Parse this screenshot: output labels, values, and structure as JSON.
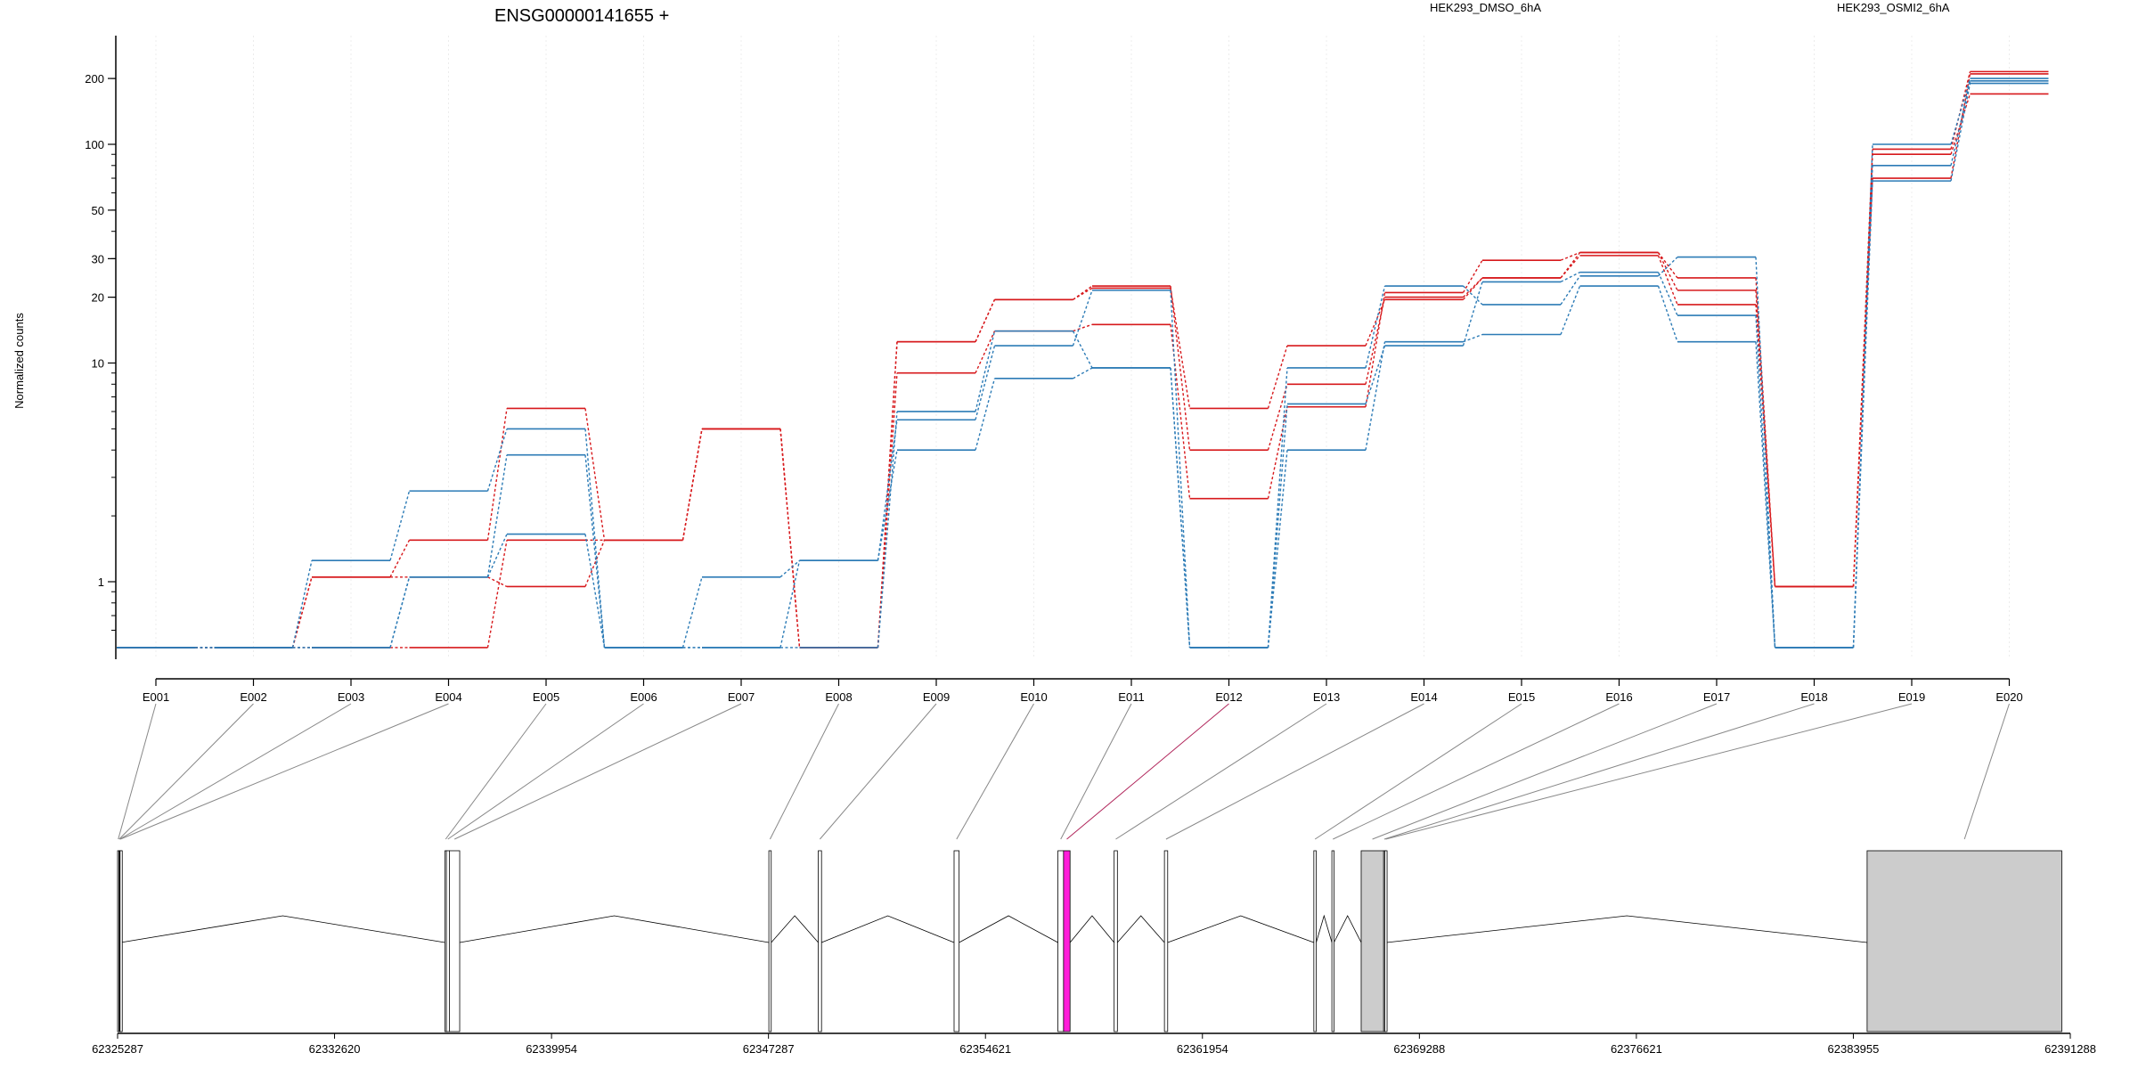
{
  "title": "ENSG00000141655 +",
  "colors": {
    "dmso": "#d7191c",
    "osmi": "#2c7bb6",
    "highlight": "#ff1ed9",
    "exon_gray": "#cccccc"
  },
  "chart_data": {
    "type": "line",
    "ylabel": "Normalized counts",
    "yscale": "log",
    "ylim": [
      0.5,
      260
    ],
    "yticks": [
      "1",
      "10",
      "20",
      "30",
      "50",
      "100",
      "200"
    ],
    "legend": "top",
    "grid": "vertical",
    "categories": [
      "E001",
      "E002",
      "E003",
      "E004",
      "E005",
      "E006",
      "E007",
      "E008",
      "E009",
      "E010",
      "E011",
      "E012",
      "E013",
      "E014",
      "E015",
      "E016",
      "E017",
      "E018",
      "E019",
      "E020"
    ],
    "series": [
      {
        "name": "HEK293_DMSO_6hA",
        "color": "#d7191c",
        "samples": [
          [
            0.5,
            0.5,
            1.05,
            1.55,
            6.2,
            1.55,
            5.0,
            0.5,
            12.5,
            19.5,
            22.5,
            4.0,
            8.0,
            20.0,
            24.5,
            31.0,
            18.5,
            0.95,
            70,
            210
          ],
          [
            0.5,
            0.5,
            1.05,
            1.05,
            0.95,
            1.55,
            5.0,
            0.5,
            9.0,
            14.0,
            15.0,
            2.4,
            6.3,
            21.0,
            29.5,
            32.0,
            24.5,
            0.95,
            95,
            215
          ],
          [
            0.5,
            0.5,
            0.5,
            0.5,
            1.55,
            1.55,
            5.0,
            0.5,
            12.5,
            19.5,
            22.0,
            6.2,
            12.0,
            19.5,
            24.5,
            32.0,
            21.5,
            0.95,
            90,
            170
          ]
        ]
      },
      {
        "name": "HEK293_OSMI2_6hA",
        "color": "#2c7bb6",
        "samples": [
          [
            0.5,
            0.5,
            1.25,
            2.6,
            5.0,
            0.5,
            1.05,
            1.25,
            5.5,
            12.0,
            21.5,
            0.5,
            9.5,
            22.5,
            18.5,
            25.0,
            30.5,
            0.5,
            100,
            200
          ],
          [
            0.5,
            0.5,
            0.5,
            1.05,
            3.8,
            0.5,
            0.5,
            1.25,
            4.0,
            8.5,
            9.5,
            0.5,
            6.5,
            12.0,
            23.5,
            26.0,
            16.5,
            0.5,
            80,
            195
          ],
          [
            0.5,
            0.5,
            0.5,
            1.05,
            1.65,
            0.5,
            0.5,
            0.5,
            6.0,
            14.0,
            9.5,
            0.5,
            4.0,
            12.5,
            13.5,
            22.5,
            12.5,
            0.5,
            68,
            190
          ]
        ]
      }
    ],
    "gene_model": {
      "coordinate_ticks": [
        "62325287",
        "62332620",
        "62339954",
        "62347287",
        "62354621",
        "62361954",
        "62369288",
        "62376621",
        "62383955",
        "62391288"
      ],
      "exons": [
        {
          "id": "E001",
          "start": 62325287,
          "end": 62325330
        },
        {
          "id": "E002",
          "start": 62325330,
          "end": 62325350
        },
        {
          "id": "E003",
          "start": 62325350,
          "end": 62325370
        },
        {
          "id": "E004",
          "start": 62325370,
          "end": 62325390
        },
        {
          "id": "E005",
          "start": 62336350,
          "end": 62336400
        },
        {
          "id": "E006",
          "start": 62336400,
          "end": 62336500
        },
        {
          "id": "E007",
          "start": 62336500,
          "end": 62336850
        },
        {
          "id": "E008",
          "start": 62347300,
          "end": 62347380
        },
        {
          "id": "E009",
          "start": 62348970,
          "end": 62349080
        },
        {
          "id": "E010",
          "start": 62353560,
          "end": 62353730
        },
        {
          "id": "E011",
          "start": 62357070,
          "end": 62357260
        },
        {
          "id": "E012",
          "start": 62357260,
          "end": 62357480,
          "highlight": true
        },
        {
          "id": "E013",
          "start": 62358970,
          "end": 62359080
        },
        {
          "id": "E014",
          "start": 62360670,
          "end": 62360780
        },
        {
          "id": "E015",
          "start": 62365720,
          "end": 62365800
        },
        {
          "id": "E016",
          "start": 62366330,
          "end": 62366400
        },
        {
          "id": "E017",
          "start": 62367320,
          "end": 62368080,
          "gray": true
        },
        {
          "id": "E018",
          "start": 62368080,
          "end": 62368120
        },
        {
          "id": "E019",
          "start": 62368120,
          "end": 62368180
        },
        {
          "id": "E020",
          "start": 62384420,
          "end": 62391000,
          "gray": true
        }
      ]
    }
  }
}
